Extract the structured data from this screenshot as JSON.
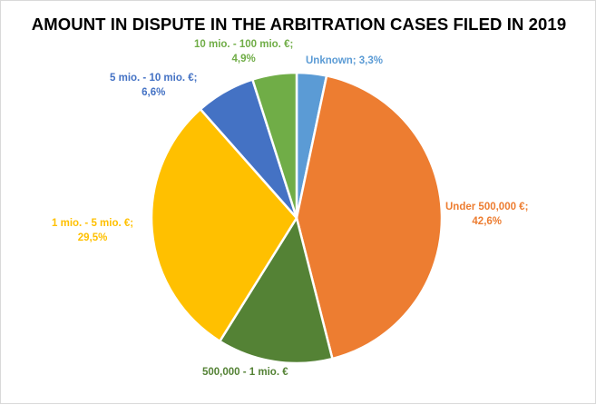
{
  "chart_data": {
    "type": "pie",
    "title": "AMOUNT IN DISPUTE IN THE ARBITRATION CASES FILED IN 2019",
    "slices": [
      {
        "label": "Unknown",
        "value": 3.3,
        "display": "3,3%",
        "color": "#5b9bd5",
        "text_color": "#5b9bd5"
      },
      {
        "label": "Under 500,000 €",
        "value": 42.6,
        "display": "42,6%",
        "color": "#ed7d31",
        "text_color": "#ed7d31"
      },
      {
        "label": "500,000 - 1 mio. €",
        "value": 12.8,
        "display": "",
        "color": "#548235",
        "text_color": "#548235"
      },
      {
        "label": "1 mio. - 5 mio. €",
        "value": 29.5,
        "display": "29,5%",
        "color": "#ffc000",
        "text_color": "#ffc000"
      },
      {
        "label": "5 mio. - 10 mio. €",
        "value": 6.6,
        "display": "6,6%",
        "color": "#4472c4",
        "text_color": "#4472c4"
      },
      {
        "label": "10 mio. - 100 mio. €",
        "value": 4.9,
        "display": "4,9%",
        "color": "#70ad47",
        "text_color": "#70ad47"
      }
    ],
    "label_lines": {
      "unknown": "Unknown; 3,3%",
      "under500k_1": "Under 500,000 €;",
      "under500k_2": "42,6%",
      "k500_1m": "500,000 - 1 mio. €",
      "m1_5_1": "1 mio. - 5 mio. €;",
      "m1_5_2": "29,5%",
      "m5_10_1": "5 mio. - 10 mio. €;",
      "m5_10_2": "6,6%",
      "m10_100_1": "10 mio. - 100 mio. €;",
      "m10_100_2": "4,9%"
    },
    "legend": "none"
  }
}
